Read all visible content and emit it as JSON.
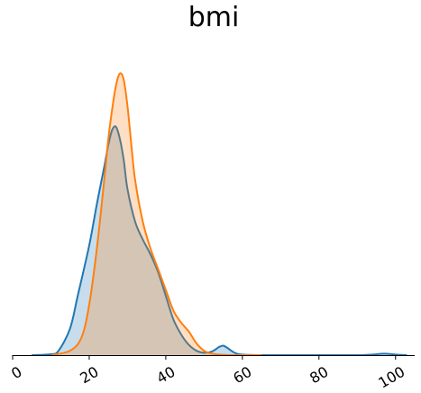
{
  "chart_data": {
    "type": "area",
    "title": "bmi",
    "xlabel": "",
    "ylabel": "",
    "xlim": [
      0,
      105
    ],
    "ylim": [
      0,
      0.104
    ],
    "xticks": [
      0,
      20,
      40,
      60,
      80,
      100
    ],
    "xtick_labels": [
      "0",
      "20",
      "40",
      "60",
      "80",
      "100"
    ],
    "grid": false,
    "legend": "none",
    "series": [
      {
        "color": "#1f77b4",
        "x": [
          5,
          10,
          12,
          15,
          17,
          20,
          22,
          24,
          25,
          26,
          27,
          28,
          29,
          30,
          32,
          34,
          36,
          38,
          40,
          42,
          44,
          46,
          48,
          50,
          52,
          54,
          55,
          56,
          58,
          60,
          65,
          70,
          80,
          90,
          94,
          97,
          100,
          103
        ],
        "y": [
          0,
          0.0003,
          0.0015,
          0.009,
          0.02,
          0.037,
          0.051,
          0.064,
          0.071,
          0.076,
          0.077,
          0.073,
          0.066,
          0.056,
          0.045,
          0.039,
          0.034,
          0.028,
          0.02,
          0.012,
          0.007,
          0.0035,
          0.0015,
          0.0008,
          0.0012,
          0.0028,
          0.0032,
          0.0025,
          0.0008,
          0.0002,
          0,
          0,
          0,
          0,
          0.0002,
          0.0005,
          0.0002,
          0
        ]
      },
      {
        "color": "#ff7f0e",
        "x": [
          10,
          15,
          18,
          20,
          22,
          24,
          25,
          26,
          27,
          28,
          29,
          30,
          31,
          32,
          34,
          36,
          38,
          40,
          42,
          44,
          46,
          48,
          50,
          52,
          55,
          60,
          65
        ],
        "y": [
          0,
          0.0015,
          0.006,
          0.017,
          0.036,
          0.06,
          0.073,
          0.083,
          0.091,
          0.095,
          0.093,
          0.084,
          0.071,
          0.059,
          0.045,
          0.036,
          0.029,
          0.022,
          0.015,
          0.011,
          0.008,
          0.004,
          0.0015,
          0.0005,
          0.0001,
          0,
          0
        ]
      }
    ]
  }
}
